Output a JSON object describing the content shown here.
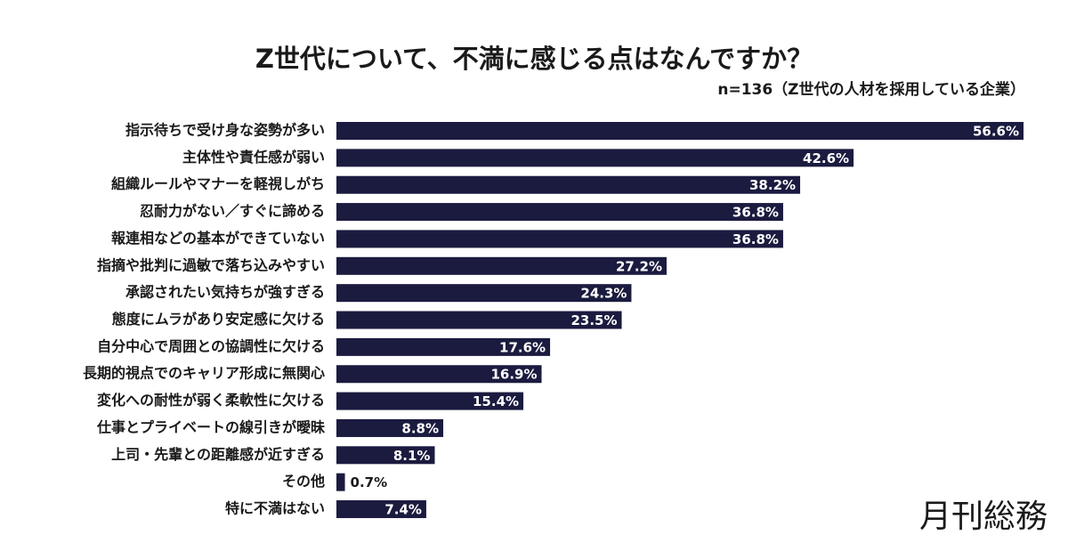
{
  "chart_data": {
    "type": "bar",
    "title": "Z世代について、不満に感じる点はなんですか？",
    "subtitle": "n=136（Z世代の人材を採用している企業）",
    "categories": [
      "指示待ちで受け身な姿勢が多い",
      "主体性や責任感が弱い",
      "組織ルールやマナーを軽視しがち",
      "忍耐力がない／すぐに諦める",
      "報連相などの基本ができていない",
      "指摘や批判に過敏で落ち込みやすい",
      "承認されたい気持ちが強すぎる",
      "態度にムラがあり安定感に欠ける",
      "自分中心で周囲との協調性に欠ける",
      "長期的視点でのキャリア形成に無関心",
      "変化への耐性が弱く柔軟性に欠ける",
      "仕事とプライベートの線引きが曖昧",
      "上司・先輩との距離感が近すぎる",
      "その他",
      "特に不満はない"
    ],
    "values": [
      56.6,
      42.6,
      38.2,
      36.8,
      36.8,
      27.2,
      24.3,
      23.5,
      17.6,
      16.9,
      15.4,
      8.8,
      8.1,
      0.7,
      7.4
    ],
    "value_labels": [
      "56.6%",
      "42.6%",
      "38.2%",
      "36.8%",
      "36.8%",
      "27.2%",
      "24.3%",
      "23.5%",
      "17.6%",
      "16.9%",
      "15.4%",
      "8.8%",
      "8.1%",
      "0.7%",
      "7.4%"
    ],
    "color": "#1b1b40"
  },
  "logo": "月刊総務"
}
